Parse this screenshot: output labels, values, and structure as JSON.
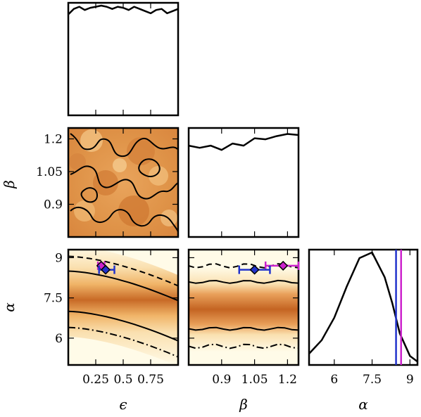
{
  "chart_data": {
    "type": "corner",
    "parameters": [
      {
        "name": "epsilon",
        "label": "ϵ",
        "range": [
          0.0,
          1.0
        ],
        "ticks": [
          "0.25",
          "0.5",
          "0.75"
        ],
        "tick_values": [
          0.25,
          0.5,
          0.75
        ]
      },
      {
        "name": "beta",
        "label": "β",
        "range": [
          0.75,
          1.25
        ],
        "ticks": [
          "0.9",
          "1.05",
          "1.2"
        ],
        "tick_values": [
          0.9,
          1.05,
          1.2
        ]
      },
      {
        "name": "alpha",
        "label": "α",
        "range": [
          5.0,
          9.3
        ],
        "ticks": [
          "6",
          "7.5",
          "9"
        ],
        "tick_values": [
          6,
          7.5,
          9
        ]
      }
    ],
    "marginals": {
      "epsilon": {
        "x": [
          0.0,
          0.05,
          0.1,
          0.15,
          0.2,
          0.25,
          0.3,
          0.35,
          0.4,
          0.45,
          0.5,
          0.55,
          0.6,
          0.65,
          0.7,
          0.75,
          0.8,
          0.85,
          0.9,
          0.95,
          1.0
        ],
        "density": [
          0.92,
          0.97,
          0.99,
          0.96,
          0.98,
          0.99,
          1.0,
          0.99,
          0.97,
          0.99,
          0.98,
          0.96,
          0.99,
          0.97,
          0.95,
          0.93,
          0.96,
          0.97,
          0.93,
          0.95,
          0.97
        ]
      },
      "beta": {
        "x": [
          0.75,
          0.8,
          0.85,
          0.9,
          0.95,
          1.0,
          1.05,
          1.1,
          1.15,
          1.2,
          1.25
        ],
        "density": [
          0.86,
          0.84,
          0.86,
          0.82,
          0.88,
          0.86,
          0.93,
          0.92,
          0.95,
          0.97,
          0.96
        ]
      },
      "alpha": {
        "x": [
          5.0,
          5.5,
          6.0,
          6.5,
          7.0,
          7.5,
          8.0,
          8.3,
          8.6,
          9.0,
          9.3
        ],
        "density": [
          0.1,
          0.22,
          0.42,
          0.7,
          0.95,
          1.0,
          0.78,
          0.55,
          0.28,
          0.08,
          0.03
        ]
      }
    },
    "markers": [
      {
        "color": "#cc22cc",
        "epsilon": 0.3,
        "beta": 1.18,
        "alpha": 8.7,
        "epsilon_err": [
          0.27,
          0.33
        ],
        "beta_err": [
          1.1,
          1.25
        ]
      },
      {
        "color": "#2233cc",
        "epsilon": 0.34,
        "beta": 1.05,
        "alpha": 8.55,
        "epsilon_err": [
          0.28,
          0.42
        ],
        "beta_err": [
          0.98,
          1.12
        ]
      }
    ],
    "truth_lines_alpha": [
      {
        "color": "#2233cc",
        "alpha": 8.45
      },
      {
        "color": "#cc22cc",
        "alpha": 8.65
      }
    ],
    "colormap": [
      "#fffbe8",
      "#fae0b0",
      "#f0b468",
      "#d98a3a",
      "#b85c1e",
      "#8a3a12"
    ],
    "xlabel_epsilon": "ϵ",
    "xlabel_beta": "β",
    "xlabel_alpha": "α",
    "ylabel_beta": "β",
    "ylabel_alpha": "α"
  }
}
